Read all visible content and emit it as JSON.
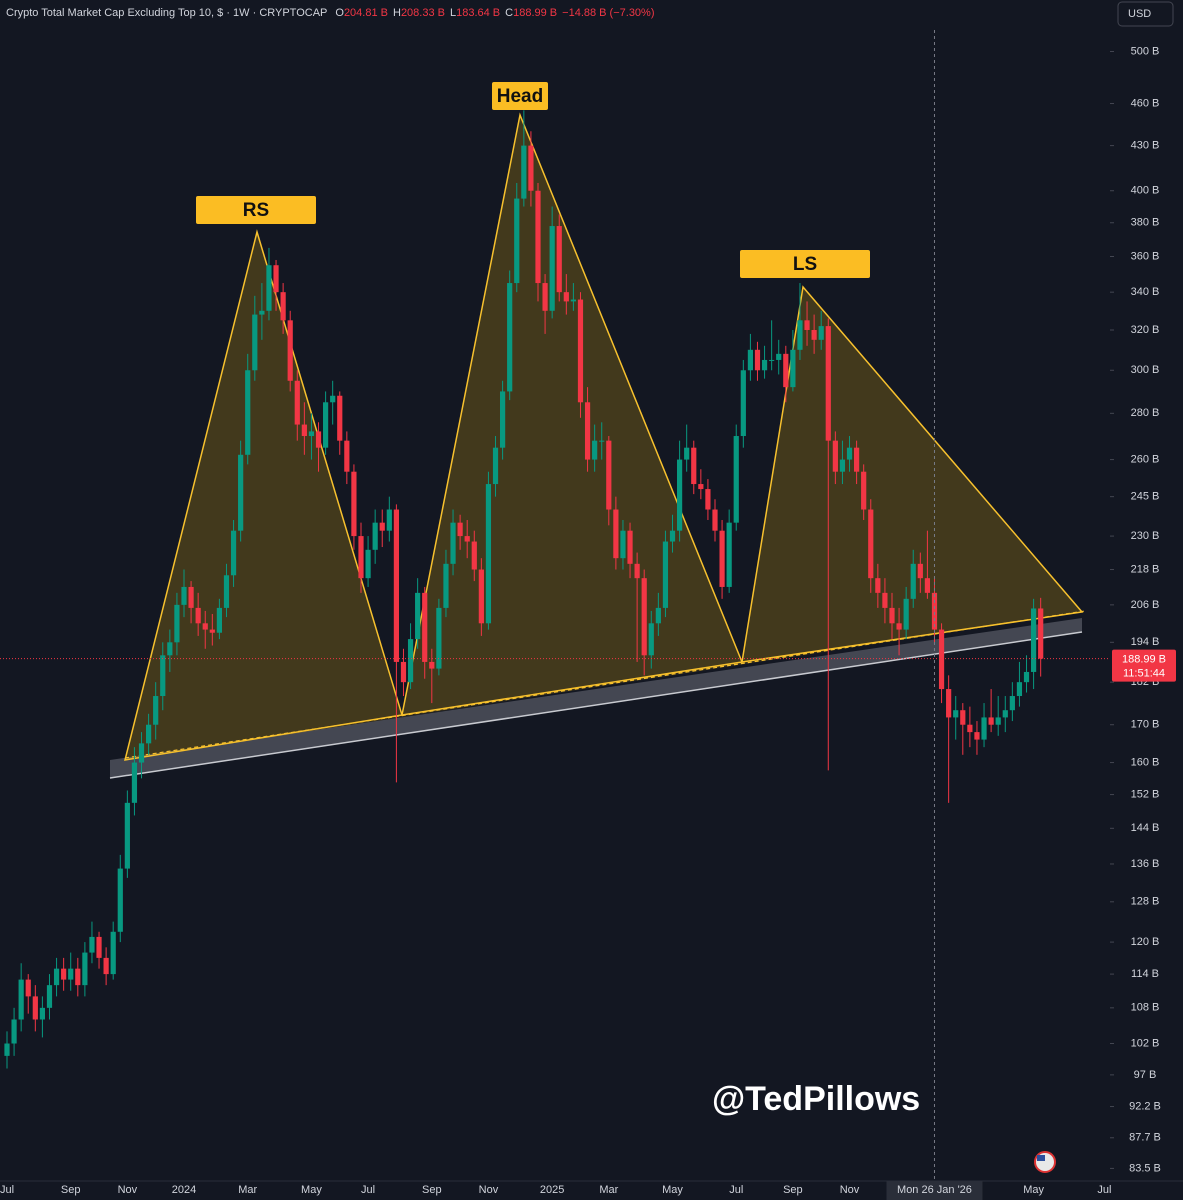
{
  "chart_data": {
    "type": "candlestick",
    "title": "Crypto Total Market Cap Excluding Top 10, $ · 1W · CRYPTOCAP",
    "header_values": [
      {
        "key": "O",
        "value": "204.81 B"
      },
      {
        "key": "H",
        "value": "208.33 B"
      },
      {
        "key": "L",
        "value": "183.64 B"
      },
      {
        "key": "C",
        "value": "188.99 B"
      }
    ],
    "change": "−14.88 B (−7.30%)",
    "currency": "USD",
    "log_scale": true,
    "grid": false,
    "up_color": "#089981",
    "down_color": "#f23645",
    "categories": [
      "Jul",
      null,
      null,
      null,
      null,
      null,
      null,
      null,
      null,
      "Sep",
      null,
      null,
      null,
      null,
      null,
      null,
      null,
      "Nov",
      null,
      null,
      null,
      null,
      null,
      null,
      null,
      "2024",
      null,
      null,
      null,
      null,
      null,
      null,
      null,
      null,
      "Mar",
      null,
      null,
      null,
      null,
      null,
      null,
      null,
      null,
      "May",
      null,
      null,
      null,
      null,
      null,
      null,
      null,
      "Jul",
      null,
      null,
      null,
      null,
      null,
      null,
      null,
      null,
      "Sep",
      null,
      null,
      null,
      null,
      null,
      null,
      null,
      "Nov",
      null,
      null,
      null,
      null,
      null,
      null,
      null,
      null,
      "2025",
      null,
      null,
      null,
      null,
      null,
      null,
      null,
      "Mar",
      null,
      null,
      null,
      null,
      null,
      null,
      null,
      null,
      "May",
      null,
      null,
      null,
      null,
      null,
      null,
      null,
      null,
      "Jul",
      null,
      null,
      null,
      null,
      null,
      null,
      null,
      "Sep",
      null,
      null,
      null,
      null,
      null,
      null,
      null,
      "Nov",
      null,
      null,
      null,
      null,
      null,
      null,
      null,
      null,
      null,
      null,
      null,
      "Mon 26 Jan '26",
      null,
      null,
      null,
      null,
      null,
      null,
      null,
      null,
      null,
      null,
      null,
      null,
      null,
      "May",
      null,
      null,
      null,
      null,
      null,
      null,
      null,
      null,
      null,
      "Jul"
    ],
    "ohlc": [
      [
        100,
        104,
        98,
        102
      ],
      [
        102,
        108,
        100,
        106
      ],
      [
        106,
        116,
        104,
        113
      ],
      [
        113,
        114,
        107,
        110
      ],
      [
        110,
        112,
        104,
        106
      ],
      [
        106,
        110,
        103,
        108
      ],
      [
        108,
        114,
        106,
        112
      ],
      [
        112,
        117,
        110,
        115
      ],
      [
        115,
        117,
        111,
        113
      ],
      [
        113,
        118,
        111,
        115
      ],
      [
        115,
        117,
        110,
        112
      ],
      [
        112,
        120,
        110,
        118
      ],
      [
        118,
        124,
        116,
        121
      ],
      [
        121,
        122,
        115,
        117
      ],
      [
        117,
        119,
        112,
        114
      ],
      [
        114,
        124,
        113,
        122
      ],
      [
        122,
        138,
        120,
        135
      ],
      [
        135,
        153,
        133,
        150
      ],
      [
        150,
        164,
        147,
        160
      ],
      [
        160,
        168,
        156,
        165
      ],
      [
        165,
        173,
        162,
        170
      ],
      [
        170,
        182,
        166,
        178
      ],
      [
        178,
        194,
        174,
        190
      ],
      [
        190,
        198,
        185,
        194
      ],
      [
        194,
        210,
        190,
        206
      ],
      [
        206,
        218,
        202,
        212
      ],
      [
        212,
        214,
        200,
        205
      ],
      [
        205,
        210,
        196,
        200
      ],
      [
        200,
        204,
        192,
        198
      ],
      [
        198,
        203,
        193,
        197
      ],
      [
        197,
        208,
        195,
        205
      ],
      [
        205,
        220,
        202,
        216
      ],
      [
        216,
        236,
        212,
        232
      ],
      [
        232,
        268,
        228,
        262
      ],
      [
        262,
        308,
        258,
        300
      ],
      [
        300,
        338,
        295,
        328
      ],
      [
        328,
        345,
        315,
        330
      ],
      [
        330,
        365,
        325,
        355
      ],
      [
        355,
        358,
        330,
        340
      ],
      [
        340,
        345,
        318,
        325
      ],
      [
        325,
        330,
        290,
        295
      ],
      [
        295,
        300,
        268,
        275
      ],
      [
        275,
        285,
        262,
        270
      ],
      [
        270,
        280,
        260,
        272
      ],
      [
        272,
        276,
        255,
        265
      ],
      [
        265,
        290,
        262,
        285
      ],
      [
        285,
        295,
        275,
        288
      ],
      [
        288,
        290,
        262,
        268
      ],
      [
        268,
        272,
        250,
        255
      ],
      [
        255,
        258,
        225,
        230
      ],
      [
        230,
        235,
        210,
        215
      ],
      [
        215,
        230,
        212,
        225
      ],
      [
        225,
        240,
        220,
        235
      ],
      [
        235,
        240,
        226,
        232
      ],
      [
        232,
        245,
        228,
        240
      ],
      [
        240,
        242,
        155,
        188
      ],
      [
        188,
        192,
        178,
        182
      ],
      [
        182,
        200,
        180,
        195
      ],
      [
        195,
        215,
        192,
        210
      ],
      [
        210,
        212,
        183,
        188
      ],
      [
        188,
        192,
        176,
        186
      ],
      [
        186,
        208,
        184,
        205
      ],
      [
        205,
        225,
        202,
        220
      ],
      [
        220,
        240,
        216,
        235
      ],
      [
        235,
        238,
        225,
        230
      ],
      [
        230,
        236,
        222,
        228
      ],
      [
        228,
        232,
        214,
        218
      ],
      [
        218,
        222,
        196,
        200
      ],
      [
        200,
        255,
        198,
        250
      ],
      [
        250,
        270,
        245,
        265
      ],
      [
        265,
        295,
        260,
        290
      ],
      [
        290,
        352,
        286,
        345
      ],
      [
        345,
        405,
        340,
        395
      ],
      [
        395,
        455,
        390,
        430
      ],
      [
        430,
        440,
        390,
        400
      ],
      [
        400,
        405,
        335,
        345
      ],
      [
        345,
        350,
        318,
        330
      ],
      [
        330,
        390,
        326,
        378
      ],
      [
        378,
        385,
        335,
        340
      ],
      [
        340,
        350,
        328,
        335
      ],
      [
        335,
        345,
        330,
        336
      ],
      [
        336,
        340,
        278,
        285
      ],
      [
        285,
        292,
        255,
        260
      ],
      [
        260,
        275,
        255,
        268
      ],
      [
        268,
        276,
        260,
        268
      ],
      [
        268,
        270,
        234,
        240
      ],
      [
        240,
        245,
        218,
        222
      ],
      [
        222,
        236,
        218,
        232
      ],
      [
        232,
        235,
        215,
        220
      ],
      [
        220,
        224,
        188,
        215
      ],
      [
        215,
        218,
        184,
        190
      ],
      [
        190,
        204,
        186,
        200
      ],
      [
        200,
        210,
        196,
        205
      ],
      [
        205,
        232,
        202,
        228
      ],
      [
        228,
        238,
        224,
        232
      ],
      [
        232,
        268,
        228,
        260
      ],
      [
        260,
        275,
        255,
        265
      ],
      [
        265,
        268,
        246,
        250
      ],
      [
        250,
        256,
        244,
        248
      ],
      [
        248,
        252,
        236,
        240
      ],
      [
        240,
        244,
        228,
        232
      ],
      [
        232,
        236,
        208,
        212
      ],
      [
        212,
        240,
        210,
        235
      ],
      [
        235,
        275,
        232,
        270
      ],
      [
        270,
        305,
        265,
        300
      ],
      [
        300,
        318,
        295,
        310
      ],
      [
        310,
        314,
        295,
        300
      ],
      [
        300,
        312,
        296,
        305
      ],
      [
        305,
        325,
        300,
        305
      ],
      [
        305,
        315,
        298,
        308
      ],
      [
        308,
        312,
        285,
        292
      ],
      [
        292,
        320,
        290,
        310
      ],
      [
        310,
        345,
        305,
        325
      ],
      [
        325,
        335,
        312,
        320
      ],
      [
        320,
        328,
        308,
        315
      ],
      [
        315,
        330,
        310,
        322
      ],
      [
        322,
        326,
        158,
        268
      ],
      [
        268,
        272,
        250,
        255
      ],
      [
        255,
        268,
        250,
        260
      ],
      [
        260,
        270,
        255,
        265
      ],
      [
        265,
        268,
        250,
        255
      ],
      [
        255,
        258,
        236,
        240
      ],
      [
        240,
        244,
        210,
        215
      ],
      [
        215,
        220,
        205,
        210
      ],
      [
        210,
        215,
        200,
        205
      ],
      [
        205,
        210,
        195,
        200
      ],
      [
        200,
        205,
        190,
        198
      ],
      [
        198,
        212,
        195,
        208
      ],
      [
        208,
        225,
        205,
        220
      ],
      [
        220,
        224,
        210,
        215
      ],
      [
        215,
        232,
        208,
        210
      ],
      [
        210,
        215,
        194,
        198
      ],
      [
        198,
        200,
        176,
        180
      ],
      [
        180,
        184,
        150,
        172
      ],
      [
        172,
        178,
        166,
        174
      ],
      [
        174,
        176,
        162,
        170
      ],
      [
        170,
        175,
        164,
        168
      ],
      [
        168,
        171,
        162,
        166
      ],
      [
        166,
        176,
        164,
        172
      ],
      [
        172,
        180,
        168,
        170
      ],
      [
        170,
        178,
        167,
        172
      ],
      [
        172,
        178,
        168,
        174
      ],
      [
        174,
        182,
        171,
        178
      ],
      [
        178,
        188,
        175,
        182
      ],
      [
        182,
        190,
        179,
        185
      ],
      [
        185,
        208,
        180,
        204.81
      ],
      [
        204.81,
        208.33,
        183.64,
        188.99
      ],
      null,
      null,
      null,
      null,
      null,
      null,
      null,
      null,
      null
    ],
    "ylim": [
      81.7,
      543
    ],
    "yticks": [
      {
        "value": 500,
        "label": "500 B"
      },
      {
        "value": 460,
        "label": "460 B"
      },
      {
        "value": 430,
        "label": "430 B"
      },
      {
        "value": 400,
        "label": "400 B"
      },
      {
        "value": 380,
        "label": "380 B"
      },
      {
        "value": 360,
        "label": "360 B"
      },
      {
        "value": 340,
        "label": "340 B"
      },
      {
        "value": 320,
        "label": "320 B"
      },
      {
        "value": 300,
        "label": "300 B"
      },
      {
        "value": 280,
        "label": "280 B"
      },
      {
        "value": 260,
        "label": "260 B"
      },
      {
        "value": 245,
        "label": "245 B"
      },
      {
        "value": 230,
        "label": "230 B"
      },
      {
        "value": 218,
        "label": "218 B"
      },
      {
        "value": 206,
        "label": "206 B"
      },
      {
        "value": 194,
        "label": "194 B"
      },
      {
        "value": 182,
        "label": "182 B"
      },
      {
        "value": 170,
        "label": "170 B"
      },
      {
        "value": 160,
        "label": "160 B"
      },
      {
        "value": 152,
        "label": "152 B"
      },
      {
        "value": 144,
        "label": "144 B"
      },
      {
        "value": 136,
        "label": "136 B"
      },
      {
        "value": 128,
        "label": "128 B"
      },
      {
        "value": 120,
        "label": "120 B"
      },
      {
        "value": 114,
        "label": "114 B"
      },
      {
        "value": 108,
        "label": "108 B"
      },
      {
        "value": 102,
        "label": "102 B"
      },
      {
        "value": 97,
        "label": "97 B"
      },
      {
        "value": 92.2,
        "label": "92.2 B"
      },
      {
        "value": 87.7,
        "label": "87.7 B"
      },
      {
        "value": 83.5,
        "label": "83.5 B"
      }
    ],
    "last_price": {
      "value": 188.99,
      "label": "188.99 B"
    },
    "countdown": "11:51:44",
    "crosshair_category": "Mon 26 Jan '26",
    "annotations": [
      "RS",
      "Head",
      "LS",
      "@TedPillows"
    ]
  }
}
